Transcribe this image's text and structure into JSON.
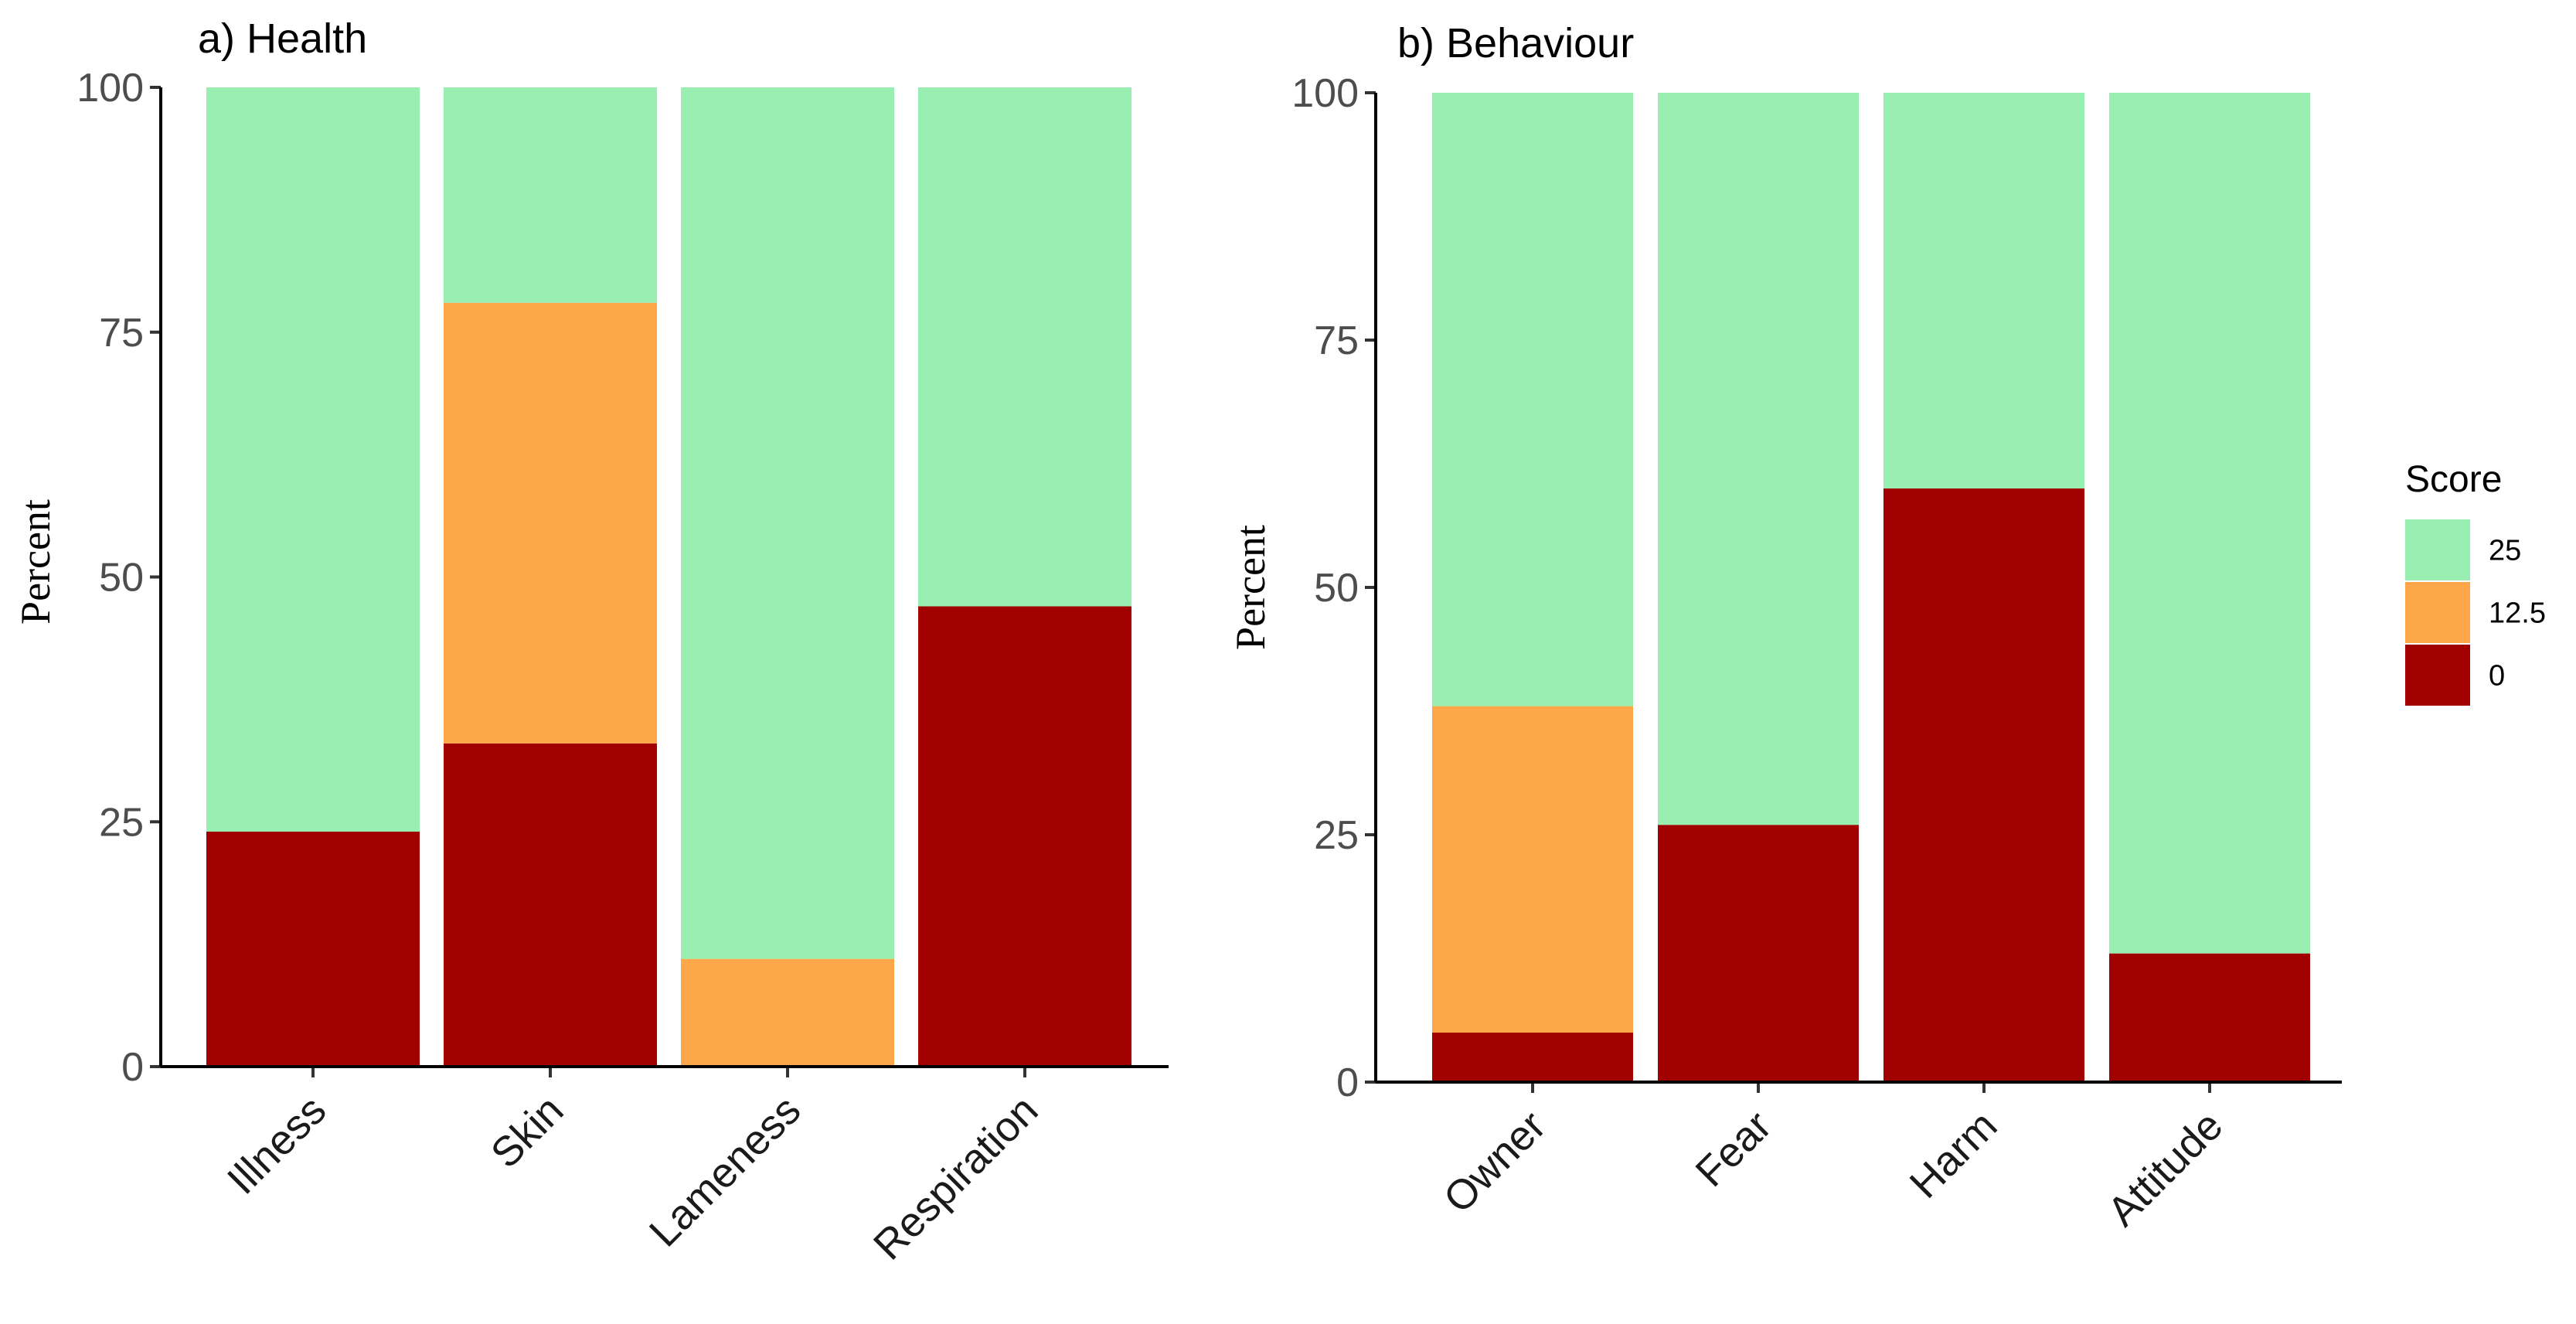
{
  "legend": {
    "title": "Score",
    "entries": [
      {
        "label": "25",
        "color": "#99EEB2"
      },
      {
        "label": "12.5",
        "color": "#FEA64A"
      },
      {
        "label": "0",
        "color": "#A00000"
      }
    ]
  },
  "chart_data": [
    {
      "type": "bar",
      "stacked": true,
      "title": "a) Health",
      "xlabel": "",
      "ylabel": "Percent",
      "ylim": [
        0,
        100
      ],
      "yticks": [
        0,
        25,
        50,
        75,
        100
      ],
      "categories": [
        "Illness",
        "Skin",
        "Lameness",
        "Respiration"
      ],
      "series": [
        {
          "name": "0",
          "values": [
            24,
            33,
            0,
            47
          ]
        },
        {
          "name": "12.5",
          "values": [
            0,
            45,
            11,
            0
          ]
        },
        {
          "name": "25",
          "values": [
            76,
            22,
            89,
            53
          ]
        }
      ]
    },
    {
      "type": "bar",
      "stacked": true,
      "title": "b) Behaviour",
      "xlabel": "",
      "ylabel": "Percent",
      "ylim": [
        0,
        100
      ],
      "yticks": [
        0,
        25,
        50,
        75,
        100
      ],
      "categories": [
        "Owner",
        "Fear",
        "Harm",
        "Attitude"
      ],
      "series": [
        {
          "name": "0",
          "values": [
            5,
            26,
            60,
            13
          ]
        },
        {
          "name": "12.5",
          "values": [
            33,
            0,
            0,
            0
          ]
        },
        {
          "name": "25",
          "values": [
            62,
            74,
            40,
            87
          ]
        }
      ]
    }
  ]
}
